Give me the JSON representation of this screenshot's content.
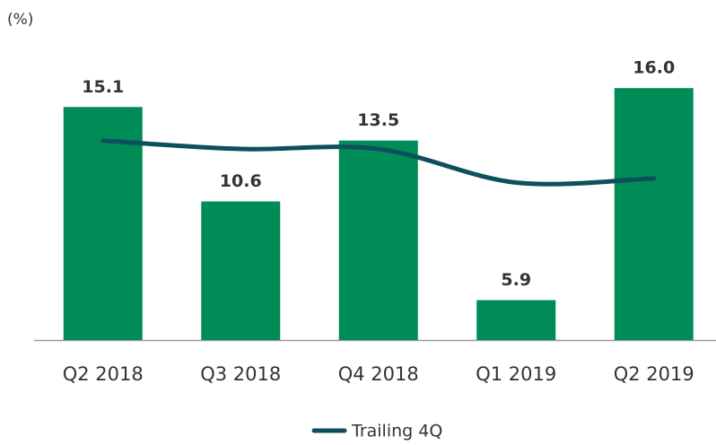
{
  "chart_data": {
    "type": "bar",
    "y_unit_label": "(%)",
    "categories": [
      "Q2 2018",
      "Q3 2018",
      "Q4 2018",
      "Q1 2019",
      "Q2 2019"
    ],
    "values": [
      15.1,
      10.6,
      13.5,
      5.9,
      16.0
    ],
    "value_labels": [
      "15.1",
      "10.6",
      "13.5",
      "5.9",
      "16.0"
    ],
    "color": "#008c57",
    "line": {
      "name": "Trailing 4Q",
      "color": "#0e4f5c",
      "values": [
        13.5,
        13.1,
        13.1,
        11.5,
        11.7
      ]
    },
    "ylim": [
      4,
      18
    ]
  }
}
